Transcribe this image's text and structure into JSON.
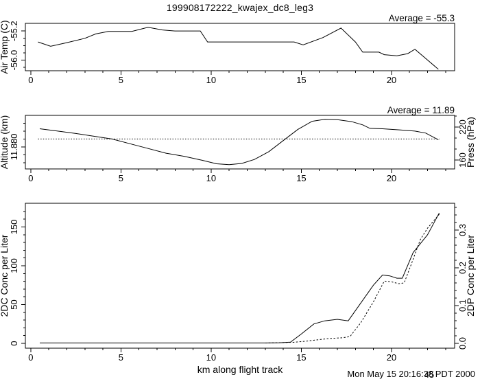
{
  "title": "199908172222_kwajex_dc8_leg3",
  "x_axis": {
    "label": "km along flight track",
    "tick_labels": [
      "0",
      "5",
      "10",
      "15",
      "20"
    ],
    "tick_values": [
      0,
      5,
      10,
      15,
      20
    ],
    "minor_tick_values": [
      1,
      2,
      3,
      4,
      6,
      7,
      8,
      9,
      11,
      12,
      13,
      14,
      16,
      17,
      18,
      19,
      21,
      22,
      23
    ],
    "range": [
      -0.3,
      23.5
    ]
  },
  "timestamp": {
    "prefix": "Mon May 15 20:16:",
    "seconds_a": "38",
    "seconds_b": "45",
    "suffix": "PDT 2000"
  },
  "chart_data": [
    {
      "id": "air-temp",
      "type": "line",
      "ylabel": "Air Temp (C)",
      "annotation": "Average = -55.3",
      "average": -55.3,
      "ylim": [
        -56.29,
        -54.99
      ],
      "yticks": [
        {
          "v": -55.2,
          "label": "-55.2"
        },
        {
          "v": -56.0,
          "label": "-56.0"
        }
      ],
      "yticks_minor": [
        -55.4,
        -55.6,
        -55.8,
        -56.2
      ],
      "grid": false,
      "series": [
        {
          "name": "air-temp",
          "line": "solid",
          "axis": "left",
          "x": [
            0.4,
            1.1,
            2.0,
            3.0,
            3.6,
            4.3,
            5.6,
            6.5,
            7.3,
            8.0,
            9.4,
            9.8,
            10.5,
            12.0,
            13.5,
            14.6,
            15.1,
            16.2,
            17.2,
            18.0,
            18.4,
            19.3,
            19.6,
            20.3,
            20.9,
            21.3,
            22.6
          ],
          "y": [
            -55.5,
            -55.62,
            -55.52,
            -55.4,
            -55.28,
            -55.21,
            -55.21,
            -55.1,
            -55.17,
            -55.2,
            -55.2,
            -55.5,
            -55.5,
            -55.5,
            -55.5,
            -55.5,
            -55.58,
            -55.38,
            -55.12,
            -55.5,
            -55.78,
            -55.78,
            -55.85,
            -55.88,
            -55.82,
            -55.7,
            -56.25
          ]
        }
      ]
    },
    {
      "id": "altitude",
      "type": "line",
      "ylabel": "Altitude (km)",
      "ylabel_right": "Press (hPa)",
      "annotation": "Average = 11.89",
      "average": 11.89,
      "average_line": 11.89,
      "ylim": [
        11.852,
        11.92
      ],
      "yticks": [
        {
          "v": 11.88,
          "label": "11.880"
        }
      ],
      "yticks_minor": [
        11.86,
        11.87,
        11.89,
        11.9,
        11.91
      ],
      "y2lim": [
        143.75,
        241.25
      ],
      "y2ticks": [
        {
          "v": 160,
          "label": "160"
        },
        {
          "v": 220,
          "label": "220"
        }
      ],
      "y2ticks_minor": [
        180,
        200,
        240
      ],
      "grid": false,
      "series": [
        {
          "name": "altitude",
          "line": "solid",
          "axis": "left",
          "x": [
            0.5,
            1.5,
            2.5,
            3.5,
            4.5,
            5.5,
            6.5,
            7.5,
            8.5,
            9.5,
            10.3,
            11.0,
            11.7,
            12.4,
            13.2,
            14.0,
            14.8,
            15.6,
            16.3,
            17.0,
            17.8,
            18.4,
            18.8,
            19.5,
            20.5,
            21.3,
            21.9,
            22.6
          ],
          "y": [
            11.903,
            11.9,
            11.897,
            11.8935,
            11.89,
            11.884,
            11.878,
            11.872,
            11.868,
            11.863,
            11.8585,
            11.8575,
            11.859,
            11.864,
            11.874,
            11.888,
            11.902,
            11.9125,
            11.915,
            11.9145,
            11.912,
            11.908,
            11.9035,
            11.903,
            11.9015,
            11.9,
            11.8975,
            11.889
          ]
        }
      ]
    },
    {
      "id": "concentration",
      "type": "line",
      "ylabel": "2DC Conc per Liter",
      "ylabel_right": "2DP Conc per Liter",
      "ylim": [
        -6.2,
        180.5
      ],
      "yticks": [
        {
          "v": 0,
          "label": "0"
        },
        {
          "v": 50,
          "label": "50"
        },
        {
          "v": 100,
          "label": "100"
        },
        {
          "v": 150,
          "label": "150"
        }
      ],
      "yticks_minor": [
        10,
        20,
        30,
        40,
        60,
        70,
        80,
        90,
        110,
        120,
        130,
        140,
        160,
        170
      ],
      "y2lim": [
        -0.0127,
        0.3709
      ],
      "y2ticks": [
        {
          "v": 0.0,
          "label": "0.0"
        },
        {
          "v": 0.1,
          "label": "0.1"
        },
        {
          "v": 0.2,
          "label": "0.2"
        },
        {
          "v": 0.3,
          "label": "0.3"
        }
      ],
      "y2ticks_minor": [
        0.02,
        0.04,
        0.06,
        0.08,
        0.12,
        0.14,
        0.16,
        0.18,
        0.22,
        0.24,
        0.26,
        0.28,
        0.32,
        0.34,
        0.36
      ],
      "grid": false,
      "series": [
        {
          "name": "2dc-conc",
          "line": "solid",
          "axis": "left",
          "x": [
            0.5,
            5.0,
            10.0,
            13.0,
            13.8,
            14.4,
            15.0,
            15.7,
            16.3,
            17.0,
            17.6,
            18.3,
            19.0,
            19.5,
            19.9,
            20.3,
            20.6,
            21.2,
            22.0,
            22.65
          ],
          "y": [
            0.5,
            0.5,
            0.5,
            0.5,
            0.8,
            1.5,
            12,
            25,
            29,
            31,
            29,
            52,
            75,
            88,
            87,
            84,
            84,
            117,
            140,
            168
          ]
        },
        {
          "name": "2dp-conc",
          "line": "dotted",
          "axis": "right",
          "x": [
            13.0,
            14.0,
            14.6,
            15.3,
            16.0,
            16.6,
            17.3,
            17.7,
            18.3,
            19.0,
            19.6,
            20.0,
            20.4,
            20.7,
            21.1,
            21.6,
            22.0,
            22.65
          ],
          "y": [
            0.001,
            0.002,
            0.003,
            0.006,
            0.01,
            0.013,
            0.015,
            0.018,
            0.055,
            0.11,
            0.165,
            0.163,
            0.158,
            0.16,
            0.21,
            0.275,
            0.305,
            0.342
          ]
        }
      ]
    }
  ]
}
